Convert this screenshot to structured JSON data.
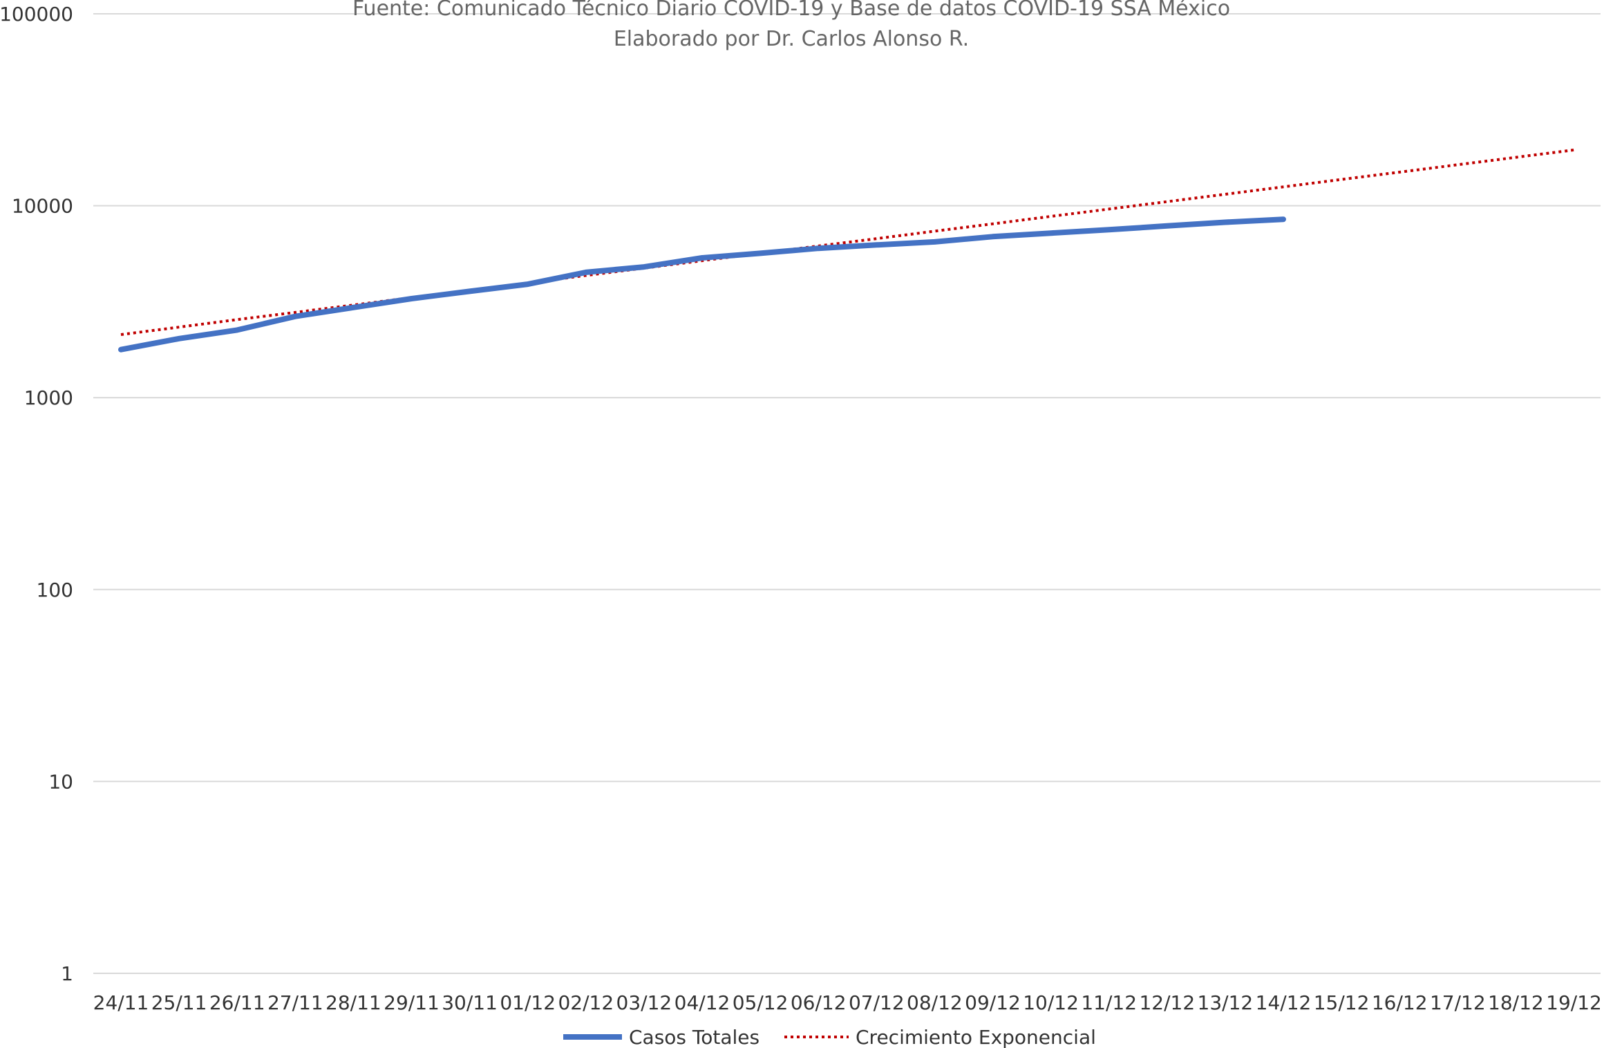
{
  "chart_data": {
    "type": "line",
    "title": "",
    "subtitle_lines": [
      "Fuente: Comunicado Técnico Diario COVID-19 y Base de datos COVID-19 SSA México",
      "Elaborado por Dr. Carlos Alonso R."
    ],
    "xlabel": "",
    "ylabel": "",
    "y_scale": "log",
    "ylim": [
      1,
      100000
    ],
    "y_ticks": [
      1,
      10,
      100,
      1000,
      10000,
      100000
    ],
    "y_tick_labels": [
      "1",
      "10",
      "100",
      "1000",
      "10000",
      "100000"
    ],
    "grid": "horizontal",
    "legend_position": "bottom",
    "categories": [
      "24/11",
      "25/11",
      "26/11",
      "27/11",
      "28/11",
      "29/11",
      "30/11",
      "01/12",
      "02/12",
      "03/12",
      "04/12",
      "05/12",
      "06/12",
      "07/12",
      "08/12",
      "09/12",
      "10/12",
      "11/12",
      "12/12",
      "13/12",
      "14/12",
      "15/12",
      "16/12",
      "17/12",
      "18/12",
      "19/12"
    ],
    "series": [
      {
        "name": "Casos Totales",
        "color": "#4472C4",
        "style": "solid",
        "values": [
          1780,
          2030,
          2250,
          2650,
          2950,
          3280,
          3580,
          3900,
          4500,
          4800,
          5350,
          5650,
          6000,
          6250,
          6480,
          6900,
          7200,
          7500,
          7850,
          8200,
          8500,
          null,
          null,
          null,
          null,
          null
        ]
      },
      {
        "name": "Crecimiento Exponencial",
        "color": "#C00000",
        "style": "dotted",
        "values": [
          2130,
          2330,
          2550,
          2780,
          3040,
          3320,
          3630,
          3960,
          4330,
          4730,
          5170,
          5650,
          6170,
          6740,
          7370,
          8050,
          8800,
          9610,
          10500,
          11480,
          12540,
          13700,
          14970,
          16360,
          17870,
          19530
        ]
      }
    ]
  }
}
